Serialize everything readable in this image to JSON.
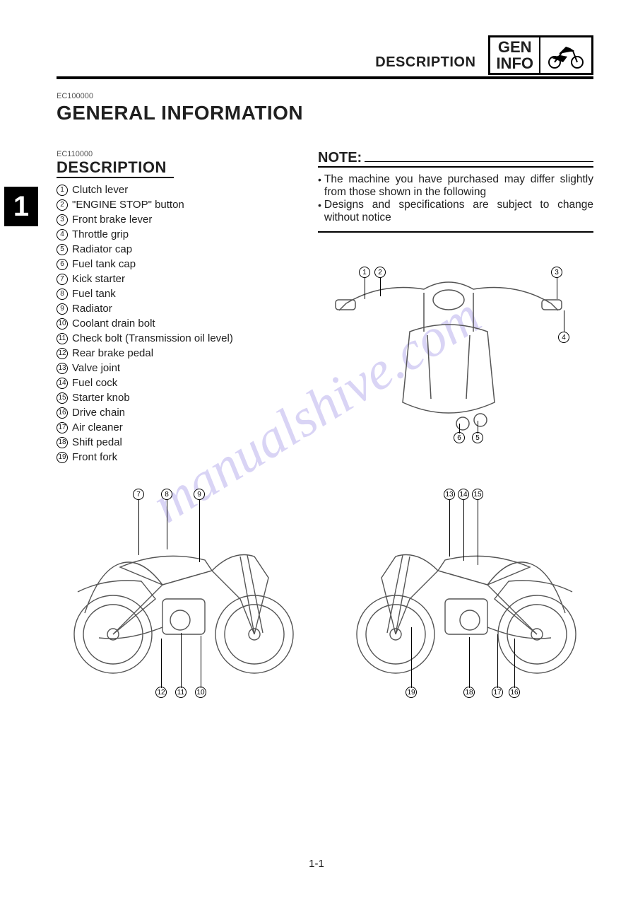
{
  "header": {
    "section_title": "DESCRIPTION",
    "box_line1": "GEN",
    "box_line2": "INFO"
  },
  "chapter_tab": "1",
  "section": {
    "code": "EC100000",
    "title": "GENERAL INFORMATION"
  },
  "description": {
    "code": "EC110000",
    "heading": "DESCRIPTION",
    "items": [
      {
        "n": "1",
        "label": "Clutch lever"
      },
      {
        "n": "2",
        "label": "\"ENGINE STOP\" button"
      },
      {
        "n": "3",
        "label": "Front brake lever"
      },
      {
        "n": "4",
        "label": "Throttle grip"
      },
      {
        "n": "5",
        "label": "Radiator cap"
      },
      {
        "n": "6",
        "label": "Fuel tank cap"
      },
      {
        "n": "7",
        "label": "Kick starter"
      },
      {
        "n": "8",
        "label": "Fuel tank"
      },
      {
        "n": "9",
        "label": "Radiator"
      },
      {
        "n": "10",
        "label": "Coolant drain bolt"
      },
      {
        "n": "11",
        "label": "Check bolt (Transmission oil level)"
      },
      {
        "n": "12",
        "label": "Rear brake pedal"
      },
      {
        "n": "13",
        "label": "Valve joint"
      },
      {
        "n": "14",
        "label": "Fuel cock"
      },
      {
        "n": "15",
        "label": "Starter knob"
      },
      {
        "n": "16",
        "label": "Drive chain"
      },
      {
        "n": "17",
        "label": "Air cleaner"
      },
      {
        "n": "18",
        "label": "Shift pedal"
      },
      {
        "n": "19",
        "label": "Front fork"
      }
    ]
  },
  "note": {
    "heading": "NOTE:",
    "bullets": [
      "The machine you have purchased may differ slightly from those shown in the following",
      "Designs and specifications are subject to change without notice"
    ]
  },
  "diagrams": {
    "top_view": {
      "callouts_top": [
        "1",
        "2",
        "3",
        "4"
      ],
      "callouts_bottom": [
        "6",
        "5"
      ]
    },
    "left_side": {
      "callouts_top": [
        "7",
        "8",
        "9"
      ],
      "callouts_bottom": [
        "12",
        "11",
        "10"
      ]
    },
    "right_side": {
      "callouts_top": [
        "13",
        "14",
        "15"
      ],
      "callouts_bottom": [
        "19",
        "18",
        "17",
        "16"
      ]
    }
  },
  "watermark": "manualshive.com",
  "page_number": "1-1",
  "colors": {
    "text": "#202020",
    "rule": "#000000",
    "watermark": "rgba(120,100,220,0.28)",
    "background": "#ffffff"
  }
}
